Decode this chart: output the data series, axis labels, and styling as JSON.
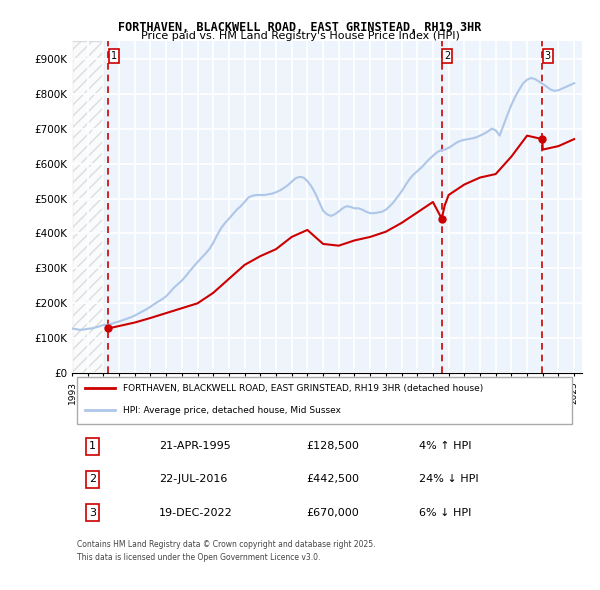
{
  "title_line1": "FORTHAVEN, BLACKWELL ROAD, EAST GRINSTEAD, RH19 3HR",
  "title_line2": "Price paid vs. HM Land Registry's House Price Index (HPI)",
  "ylabel": "",
  "ylim": [
    0,
    950000
  ],
  "yticks": [
    0,
    100000,
    200000,
    300000,
    400000,
    500000,
    600000,
    700000,
    800000,
    900000
  ],
  "ytick_labels": [
    "£0",
    "£100K",
    "£200K",
    "£300K",
    "£400K",
    "£500K",
    "£600K",
    "£700K",
    "£800K",
    "£900K"
  ],
  "xlim_start": 1993.0,
  "xlim_end": 2025.5,
  "transactions": [
    {
      "year": 1995.31,
      "price": 128500,
      "label": "1"
    },
    {
      "year": 2016.56,
      "price": 442500,
      "label": "2"
    },
    {
      "year": 2022.97,
      "price": 670000,
      "label": "3"
    }
  ],
  "hpi_line_color": "#aec6e8",
  "price_line_color": "#cc0000",
  "vline_color": "#cc0000",
  "background_hatch_color": "#d0d0d0",
  "plot_bg_color": "#eef4fb",
  "grid_color": "#ffffff",
  "legend_items": [
    {
      "label": "FORTHAVEN, BLACKWELL ROAD, EAST GRINSTEAD, RH19 3HR (detached house)",
      "color": "#cc0000"
    },
    {
      "label": "HPI: Average price, detached house, Mid Sussex",
      "color": "#aec6e8"
    }
  ],
  "table_rows": [
    {
      "num": "1",
      "date": "21-APR-1995",
      "price": "£128,500",
      "change": "4% ↑ HPI"
    },
    {
      "num": "2",
      "date": "22-JUL-2016",
      "price": "£442,500",
      "change": "24% ↓ HPI"
    },
    {
      "num": "3",
      "date": "19-DEC-2022",
      "price": "£670,000",
      "change": "6% ↓ HPI"
    }
  ],
  "footer": "Contains HM Land Registry data © Crown copyright and database right 2025.\nThis data is licensed under the Open Government Licence v3.0.",
  "hpi_data_x": [
    1993.0,
    1993.25,
    1993.5,
    1993.75,
    1994.0,
    1994.25,
    1994.5,
    1994.75,
    1995.0,
    1995.25,
    1995.5,
    1995.75,
    1996.0,
    1996.25,
    1996.5,
    1996.75,
    1997.0,
    1997.25,
    1997.5,
    1997.75,
    1998.0,
    1998.25,
    1998.5,
    1998.75,
    1999.0,
    1999.25,
    1999.5,
    1999.75,
    2000.0,
    2000.25,
    2000.5,
    2000.75,
    2001.0,
    2001.25,
    2001.5,
    2001.75,
    2002.0,
    2002.25,
    2002.5,
    2002.75,
    2003.0,
    2003.25,
    2003.5,
    2003.75,
    2004.0,
    2004.25,
    2004.5,
    2004.75,
    2005.0,
    2005.25,
    2005.5,
    2005.75,
    2006.0,
    2006.25,
    2006.5,
    2006.75,
    2007.0,
    2007.25,
    2007.5,
    2007.75,
    2008.0,
    2008.25,
    2008.5,
    2008.75,
    2009.0,
    2009.25,
    2009.5,
    2009.75,
    2010.0,
    2010.25,
    2010.5,
    2010.75,
    2011.0,
    2011.25,
    2011.5,
    2011.75,
    2012.0,
    2012.25,
    2012.5,
    2012.75,
    2013.0,
    2013.25,
    2013.5,
    2013.75,
    2014.0,
    2014.25,
    2014.5,
    2014.75,
    2015.0,
    2015.25,
    2015.5,
    2015.75,
    2016.0,
    2016.25,
    2016.5,
    2016.75,
    2017.0,
    2017.25,
    2017.5,
    2017.75,
    2018.0,
    2018.25,
    2018.5,
    2018.75,
    2019.0,
    2019.25,
    2019.5,
    2019.75,
    2020.0,
    2020.25,
    2020.5,
    2020.75,
    2021.0,
    2021.25,
    2021.5,
    2021.75,
    2022.0,
    2022.25,
    2022.5,
    2022.75,
    2023.0,
    2023.25,
    2023.5,
    2023.75,
    2024.0,
    2024.25,
    2024.5,
    2024.75,
    2025.0
  ],
  "hpi_data_y": [
    128000,
    126000,
    124000,
    125000,
    127000,
    128000,
    131000,
    134000,
    138000,
    138000,
    141000,
    145000,
    148000,
    152000,
    156000,
    160000,
    165000,
    171000,
    177000,
    183000,
    190000,
    198000,
    205000,
    212000,
    220000,
    232000,
    245000,
    255000,
    265000,
    278000,
    292000,
    305000,
    318000,
    330000,
    342000,
    355000,
    373000,
    395000,
    415000,
    430000,
    442000,
    455000,
    468000,
    478000,
    490000,
    503000,
    508000,
    510000,
    510000,
    510000,
    512000,
    514000,
    518000,
    523000,
    530000,
    538000,
    548000,
    558000,
    562000,
    560000,
    550000,
    535000,
    515000,
    490000,
    465000,
    455000,
    450000,
    455000,
    463000,
    472000,
    478000,
    476000,
    472000,
    472000,
    468000,
    462000,
    458000,
    458000,
    460000,
    462000,
    468000,
    478000,
    490000,
    505000,
    520000,
    538000,
    555000,
    568000,
    578000,
    588000,
    600000,
    612000,
    622000,
    632000,
    638000,
    640000,
    645000,
    652000,
    660000,
    665000,
    668000,
    670000,
    672000,
    675000,
    680000,
    685000,
    692000,
    700000,
    695000,
    680000,
    710000,
    740000,
    768000,
    792000,
    812000,
    830000,
    840000,
    845000,
    842000,
    835000,
    828000,
    820000,
    812000,
    808000,
    810000,
    815000,
    820000,
    825000,
    830000
  ],
  "price_data_x": [
    1993.0,
    1995.31,
    1995.5,
    1996.0,
    1997.0,
    1998.0,
    1999.0,
    2000.0,
    2001.0,
    2002.0,
    2003.0,
    2004.0,
    2005.0,
    2006.0,
    2007.0,
    2008.0,
    2009.0,
    2010.0,
    2011.0,
    2012.0,
    2013.0,
    2014.0,
    2015.0,
    2016.0,
    2016.56,
    2016.75,
    2017.0,
    2018.0,
    2019.0,
    2020.0,
    2021.0,
    2022.0,
    2022.97,
    2023.0,
    2024.0,
    2025.0
  ],
  "price_data_y": [
    null,
    128500,
    130000,
    135000,
    145000,
    158000,
    172000,
    186000,
    200000,
    230000,
    270000,
    310000,
    335000,
    355000,
    390000,
    410000,
    370000,
    365000,
    380000,
    390000,
    405000,
    430000,
    460000,
    490000,
    442500,
    480000,
    510000,
    540000,
    560000,
    570000,
    620000,
    680000,
    670000,
    640000,
    650000,
    670000
  ]
}
